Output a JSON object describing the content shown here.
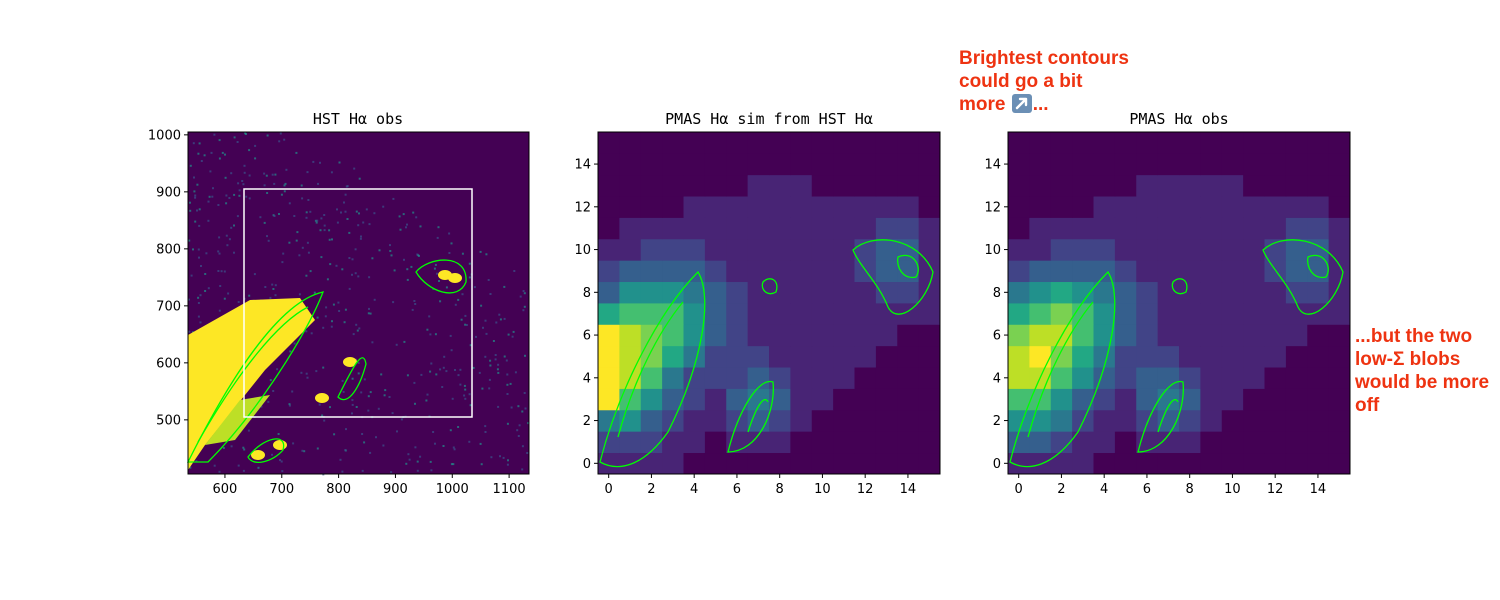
{
  "figure": {
    "panels": [
      {
        "title": "HST Hα obs",
        "xticks": [
          "600",
          "700",
          "800",
          "900",
          "1000",
          "1100"
        ],
        "yticks": [
          "500",
          "600",
          "700",
          "800",
          "900",
          "1000"
        ]
      },
      {
        "title": "PMAS Hα sim from HST Hα",
        "xticks": [
          "0",
          "2",
          "4",
          "6",
          "8",
          "10",
          "12",
          "14"
        ],
        "yticks": [
          "0",
          "2",
          "4",
          "6",
          "8",
          "10",
          "12",
          "14"
        ]
      },
      {
        "title": "PMAS Hα obs",
        "xticks": [
          "0",
          "2",
          "4",
          "6",
          "8",
          "10",
          "12",
          "14"
        ],
        "yticks": [
          "0",
          "2",
          "4",
          "6",
          "8",
          "10",
          "12",
          "14"
        ]
      }
    ],
    "annotations": {
      "top_line1": "Brightest contours",
      "top_line2": "could go a bit",
      "top_line3_start": "more ",
      "top_arrow_icon": "up-right-arrow-emoji",
      "top_line3_end": "...",
      "right": "...but the two\nlow-Σ blobs\nwould be more\noff"
    },
    "colors": {
      "contour": "#00ff00",
      "box": "#ffffff",
      "annotation": "#ee3311",
      "colormap": "viridis"
    }
  },
  "chart_data": [
    {
      "type": "heatmap",
      "title": "HST Hα obs",
      "xlim": [
        535,
        1135
      ],
      "ylim": [
        405,
        1005
      ],
      "xticks": [
        600,
        700,
        800,
        900,
        1000,
        1100
      ],
      "yticks": [
        500,
        600,
        700,
        800,
        900,
        1000
      ],
      "colormap": "viridis",
      "overlay": "green contours",
      "box": {
        "x": [
          633,
          1033
        ],
        "y": [
          505,
          905
        ]
      }
    },
    {
      "type": "heatmap",
      "title": "PMAS Hα sim from HST Hα",
      "xlim": [
        -0.5,
        15.5
      ],
      "ylim": [
        -0.5,
        15.5
      ],
      "xticks": [
        0,
        2,
        4,
        6,
        8,
        10,
        12,
        14
      ],
      "yticks": [
        0,
        2,
        4,
        6,
        8,
        10,
        12,
        14
      ],
      "colormap": "viridis",
      "overlay": "green contours"
    },
    {
      "type": "heatmap",
      "title": "PMAS Hα obs",
      "xlim": [
        -0.5,
        15.5
      ],
      "ylim": [
        -0.5,
        15.5
      ],
      "xticks": [
        0,
        2,
        4,
        6,
        8,
        10,
        12,
        14
      ],
      "yticks": [
        0,
        2,
        4,
        6,
        8,
        10,
        12,
        14
      ],
      "colormap": "viridis",
      "overlay": "green contours"
    }
  ]
}
